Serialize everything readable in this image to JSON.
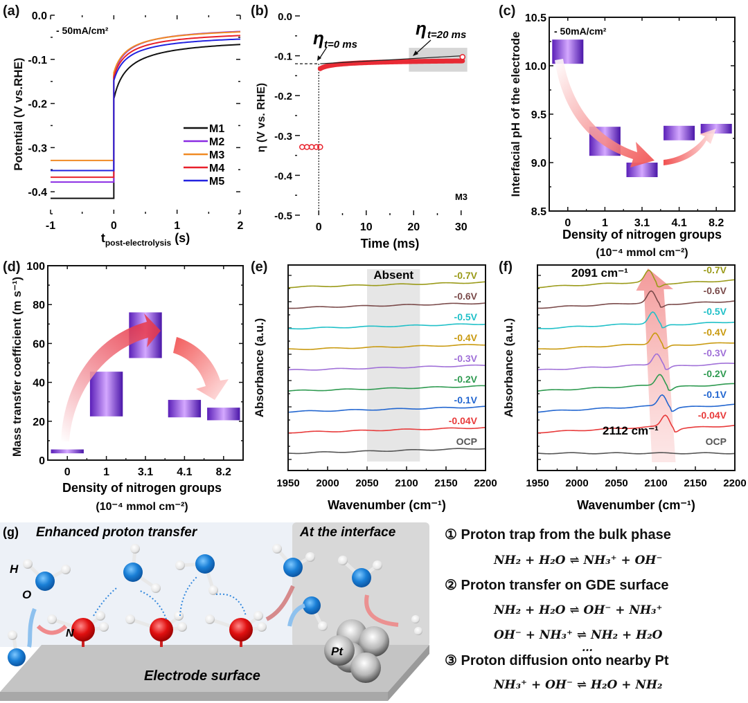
{
  "chart_data": [
    {
      "panel": "(a)",
      "type": "line",
      "annotation": "- 50mA/cm²",
      "xlabel": "t",
      "xlabel_sub": "post-electrolysis",
      "xlabel_unit": "(s)",
      "ylabel": "Potential (V vs.RHE)",
      "xlim": [
        -1,
        2
      ],
      "ylim": [
        -0.45,
        0
      ],
      "xticks": [
        "-1",
        "0",
        "1",
        "2"
      ],
      "yticks": [
        "0.0",
        "-0.1",
        "-0.2",
        "-0.3",
        "-0.4"
      ],
      "legend_position": "center-right",
      "series": [
        {
          "name": "M1",
          "color": "#111111",
          "before": -0.415,
          "jump": -0.19,
          "final": -0.045
        },
        {
          "name": "M2",
          "color": "#8a2be2",
          "before": -0.378,
          "jump": -0.135,
          "final": -0.02
        },
        {
          "name": "M3",
          "color": "#f08a24",
          "before": -0.329,
          "jump": -0.13,
          "final": -0.022
        },
        {
          "name": "M4",
          "color": "#e8202a",
          "before": -0.367,
          "jump": -0.14,
          "final": -0.03
        },
        {
          "name": "M5",
          "color": "#2222e0",
          "before": -0.352,
          "jump": -0.148,
          "final": -0.038
        }
      ]
    },
    {
      "panel": "(b)",
      "type": "scatter",
      "xlabel": "Time (ms)",
      "ylabel": "η (V vs. RHE)",
      "xlim": [
        -5,
        35
      ],
      "ylim": [
        -0.5,
        0
      ],
      "xticks": [
        "0",
        "10",
        "20",
        "30"
      ],
      "yticks": [
        "0.0",
        "-0.1",
        "-0.2",
        "-0.3",
        "-0.4",
        "-0.5"
      ],
      "sample_label": "M3",
      "annotations": [
        "η",
        "t=0 ms",
        "η",
        "t=20 ms"
      ],
      "pre_points_x": [
        -3.5,
        -2.5,
        -1.5,
        -0.5,
        0.3
      ],
      "pre_points_y": -0.329,
      "eta_t0": -0.12,
      "post_start": -0.135,
      "post_end": -0.103,
      "fit_range_ms": [
        19,
        30.5
      ],
      "color": "#e8202a"
    },
    {
      "panel": "(c)",
      "type": "bar",
      "annotation": "- 50mA/cm²",
      "xlabel": "Density of nitrogen groups",
      "xlabel2": "(10⁻⁴ mmol cm⁻²)",
      "ylabel": "Interfacial pH of the electrode",
      "categories": [
        "0",
        "1",
        "3.1",
        "4.1",
        "8.2"
      ],
      "ranges": [
        [
          10.02,
          10.27
        ],
        [
          9.07,
          9.37
        ],
        [
          8.85,
          9.0
        ],
        [
          9.23,
          9.38
        ],
        [
          9.3,
          9.4
        ]
      ],
      "ylim": [
        8.5,
        10.5
      ],
      "yticks": [
        "8.5",
        "9.0",
        "9.5",
        "10.0",
        "10.5"
      ]
    },
    {
      "panel": "(d)",
      "type": "bar",
      "xlabel": "Density of nitrogen groups",
      "xlabel2": "(10⁻⁴ mmol cm⁻²)",
      "ylabel": "Mass transfer coefficient (m s⁻¹)",
      "categories": [
        "0",
        "1",
        "3.1",
        "4.1",
        "8.2"
      ],
      "ranges": [
        [
          3.5,
          5.5
        ],
        [
          22.5,
          45.5
        ],
        [
          52.5,
          76
        ],
        [
          22,
          31
        ],
        [
          20.5,
          27
        ]
      ],
      "ylim": [
        0,
        100
      ],
      "yticks": [
        "0",
        "20",
        "40",
        "60",
        "80",
        "100"
      ]
    },
    {
      "panel": "(e)",
      "type": "line",
      "xlabel": "Wavenumber (cm⁻¹)",
      "ylabel": "Absorbance (a.u.)",
      "xlim": [
        1950,
        2200
      ],
      "xticks": [
        "1950",
        "2000",
        "2050",
        "2100",
        "2150",
        "2200"
      ],
      "shaded_region": [
        2050,
        2117
      ],
      "shaded_label": "Absent",
      "series": [
        {
          "name": "OCP",
          "color": "#555555",
          "offset": 0
        },
        {
          "name": "-0.04V",
          "color": "#e83a3a",
          "offset": 1
        },
        {
          "name": "-0.1V",
          "color": "#2266d0",
          "offset": 2
        },
        {
          "name": "-0.2V",
          "color": "#2e9a50",
          "offset": 3
        },
        {
          "name": "-0.3V",
          "color": "#a070d8",
          "offset": 4
        },
        {
          "name": "-0.4V",
          "color": "#c99a10",
          "offset": 5
        },
        {
          "name": "-0.5V",
          "color": "#20c0c8",
          "offset": 6
        },
        {
          "name": "-0.6V",
          "color": "#7a4a4a",
          "offset": 7
        },
        {
          "name": "-0.7V",
          "color": "#9a9a18",
          "offset": 8
        }
      ]
    },
    {
      "panel": "(f)",
      "type": "line",
      "xlabel": "Wavenumber (cm⁻¹)",
      "ylabel": "Absorbance (a.u.)",
      "xlim": [
        1950,
        2200
      ],
      "xticks": [
        "1950",
        "2000",
        "2050",
        "2100",
        "2150",
        "2200"
      ],
      "peak_labels": [
        "2091 cm⁻¹",
        "2112 cm⁻¹"
      ],
      "series": [
        {
          "name": "OCP",
          "color": "#555555",
          "offset": 0,
          "peak": null
        },
        {
          "name": "-0.04V",
          "color": "#e83a3a",
          "offset": 1,
          "peak": 2112
        },
        {
          "name": "-0.1V",
          "color": "#2266d0",
          "offset": 2,
          "peak": 2108
        },
        {
          "name": "-0.2V",
          "color": "#2e9a50",
          "offset": 3,
          "peak": 2105
        },
        {
          "name": "-0.3V",
          "color": "#a070d8",
          "offset": 4,
          "peak": 2101
        },
        {
          "name": "-0.4V",
          "color": "#c99a10",
          "offset": 5,
          "peak": 2099
        },
        {
          "name": "-0.5V",
          "color": "#20c0c8",
          "offset": 6,
          "peak": 2096
        },
        {
          "name": "-0.6V",
          "color": "#7a4a4a",
          "offset": 7,
          "peak": 2094
        },
        {
          "name": "-0.7V",
          "color": "#9a9a18",
          "offset": 8,
          "peak": 2091
        }
      ]
    }
  ],
  "panel_g": {
    "label": "(g)",
    "title_left": "Enhanced proton transfer",
    "title_right": "At the interface",
    "atom_labels": {
      "H": "H",
      "O": "O",
      "N": "N",
      "Pt": "Pt"
    },
    "surface_label": "Electrode surface",
    "colors": {
      "oxygen": "#1a7fd6",
      "nitrogen": "#e01010",
      "platinum": "#888888"
    }
  },
  "mechanism": {
    "steps": [
      {
        "marker": "①",
        "title": "Proton trap from the bulk phase",
        "equations": [
          [
            "NH",
            "2",
            "",
            " + H",
            "2",
            "",
            "O ⇌ NH",
            "3",
            "+",
            " + OH",
            "",
            "−",
            ""
          ]
        ]
      },
      {
        "marker": "②",
        "title": "Proton transfer on GDE surface"
      },
      {
        "marker": "③",
        "title": "Proton diffusion onto nearby Pt"
      }
    ],
    "eq1": "NH₂ + H₂O ⇌ NH₃⁺ + OH⁻",
    "eq2": "NH₂ + H₂O ⇌ OH⁻ + NH₃⁺",
    "eq3": "OH⁻ + NH₃⁺ ⇌ NH₂ + H₂O",
    "ellipsis": "…",
    "eq4": "NH₃⁺ + OH⁻ ⇌ H₂O + NH₂"
  }
}
